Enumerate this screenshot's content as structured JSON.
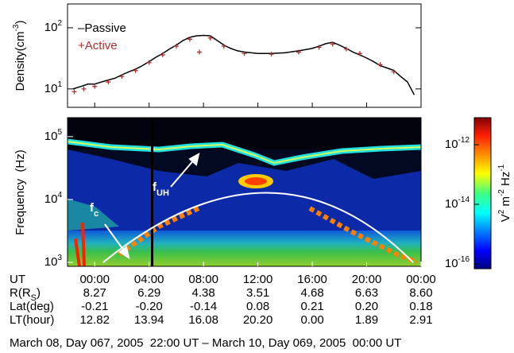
{
  "chart_data": [
    {
      "type": "line",
      "log_y": true,
      "ylabel": [
        {
          "text": "Density(cm"
        },
        {
          "sup": "-3"
        },
        {
          "text": ")"
        }
      ],
      "xlim": [
        -2,
        24
      ],
      "ylim": [
        5,
        245
      ],
      "yticks": [
        {
          "value": 10,
          "label": "10",
          "exp": "1"
        },
        {
          "value": 100,
          "label": "10",
          "exp": "2"
        }
      ],
      "legend": "upper left",
      "series": [
        {
          "name": "Passive",
          "symbol": "–",
          "color": "#000000",
          "marker": "line",
          "x": [
            -1.6,
            -1,
            -0.5,
            0,
            0.5,
            1,
            1.5,
            2,
            2.5,
            3,
            3.5,
            4,
            4.5,
            5,
            5.5,
            6,
            6.5,
            7,
            7.5,
            8,
            8.5,
            9,
            9.5,
            10,
            10.5,
            11,
            12,
            13,
            14,
            15,
            16,
            16.5,
            17,
            17.5,
            18,
            18.5,
            19,
            19.5,
            20,
            20.5,
            21,
            21.5,
            22,
            22.5,
            23,
            23.5
          ],
          "values": [
            10,
            11,
            12,
            12,
            13,
            14,
            15,
            17,
            19,
            21,
            24,
            28,
            33,
            38,
            45,
            52,
            62,
            70,
            74,
            75,
            74,
            62,
            52,
            46,
            42,
            40,
            38,
            38,
            39,
            42,
            46,
            50,
            55,
            58,
            52,
            46,
            40,
            36,
            32,
            28,
            24,
            22,
            20,
            16,
            13,
            8
          ]
        },
        {
          "name": "Active",
          "symbol": "+",
          "color": "#b03030",
          "marker": "cross",
          "x": [
            -1.5,
            -0.8,
            0,
            1,
            2,
            3,
            4,
            5,
            6,
            7,
            7.7,
            8.5,
            9.5,
            11,
            13,
            15,
            16.5,
            17.5,
            18.5,
            19.5,
            21,
            22
          ],
          "values": [
            9,
            10,
            11,
            13,
            16,
            20,
            27,
            36,
            50,
            65,
            40,
            68,
            50,
            38,
            37,
            40,
            48,
            54,
            45,
            38,
            25,
            19
          ]
        }
      ]
    },
    {
      "type": "spectrogram",
      "log_y": true,
      "ylabel": "Frequency  (Hz)",
      "xlim": [
        -2,
        24
      ],
      "ylim": [
        865,
        200000
      ],
      "yticks": [
        {
          "value": 1000,
          "label": "10",
          "exp": "3"
        },
        {
          "value": 10000,
          "label": "10",
          "exp": "4"
        },
        {
          "value": 100000,
          "label": "10",
          "exp": "5"
        }
      ],
      "x_label": "UT",
      "xticks": [
        {
          "value": 0,
          "label": "00:00"
        },
        {
          "value": 4,
          "label": "04:00"
        },
        {
          "value": 8,
          "label": "08:00"
        },
        {
          "value": 12,
          "label": "12:00"
        },
        {
          "value": 16,
          "label": "16:00"
        },
        {
          "value": 20,
          "label": "20:00"
        },
        {
          "value": 24,
          "label": "00:00"
        }
      ],
      "ephemeris": [
        {
          "label": [
            {
              "text": "R(R"
            },
            {
              "sub": "S"
            },
            {
              "text": ")"
            }
          ],
          "values": [
            "8.27",
            "6.29",
            "4.38",
            "3.51",
            "4.68",
            "6.63",
            "8.60"
          ]
        },
        {
          "label": [
            {
              "text": "Lat(deg)"
            }
          ],
          "values": [
            "-0.21",
            "-0.20",
            "-0.14",
            "0.08",
            "0.21",
            "0.20",
            "0.18"
          ]
        },
        {
          "label": [
            {
              "text": "LT(hour)"
            }
          ],
          "values": [
            "12.82",
            "13.94",
            "16.08",
            "20.20",
            "0.00",
            "1.89",
            "2.91"
          ]
        }
      ],
      "annotations": [
        [
          {
            "text": "f"
          },
          {
            "sub": "c"
          }
        ],
        [
          {
            "text": "f"
          },
          {
            "sub": "UH"
          }
        ]
      ],
      "colorbar": {
        "label": [
          {
            "text": "V"
          },
          {
            "sup": "2"
          },
          {
            "text": " m"
          },
          {
            "sup": "-2"
          },
          {
            "text": " Hz"
          },
          {
            "sup": "-1"
          }
        ],
        "lim": [
          6.9e-17,
          8.1e-12
        ],
        "ticks": [
          {
            "value": 1e-12,
            "label": "10",
            "exp": "-12"
          },
          {
            "value": 1e-14,
            "label": "10",
            "exp": "-14"
          },
          {
            "value": 1e-16,
            "label": "10",
            "exp": "-16"
          }
        ]
      }
    }
  ],
  "caption": "March 08, Day 067, 2005  22:00 UT – March 10, Day 069, 2005  00:00 UT"
}
